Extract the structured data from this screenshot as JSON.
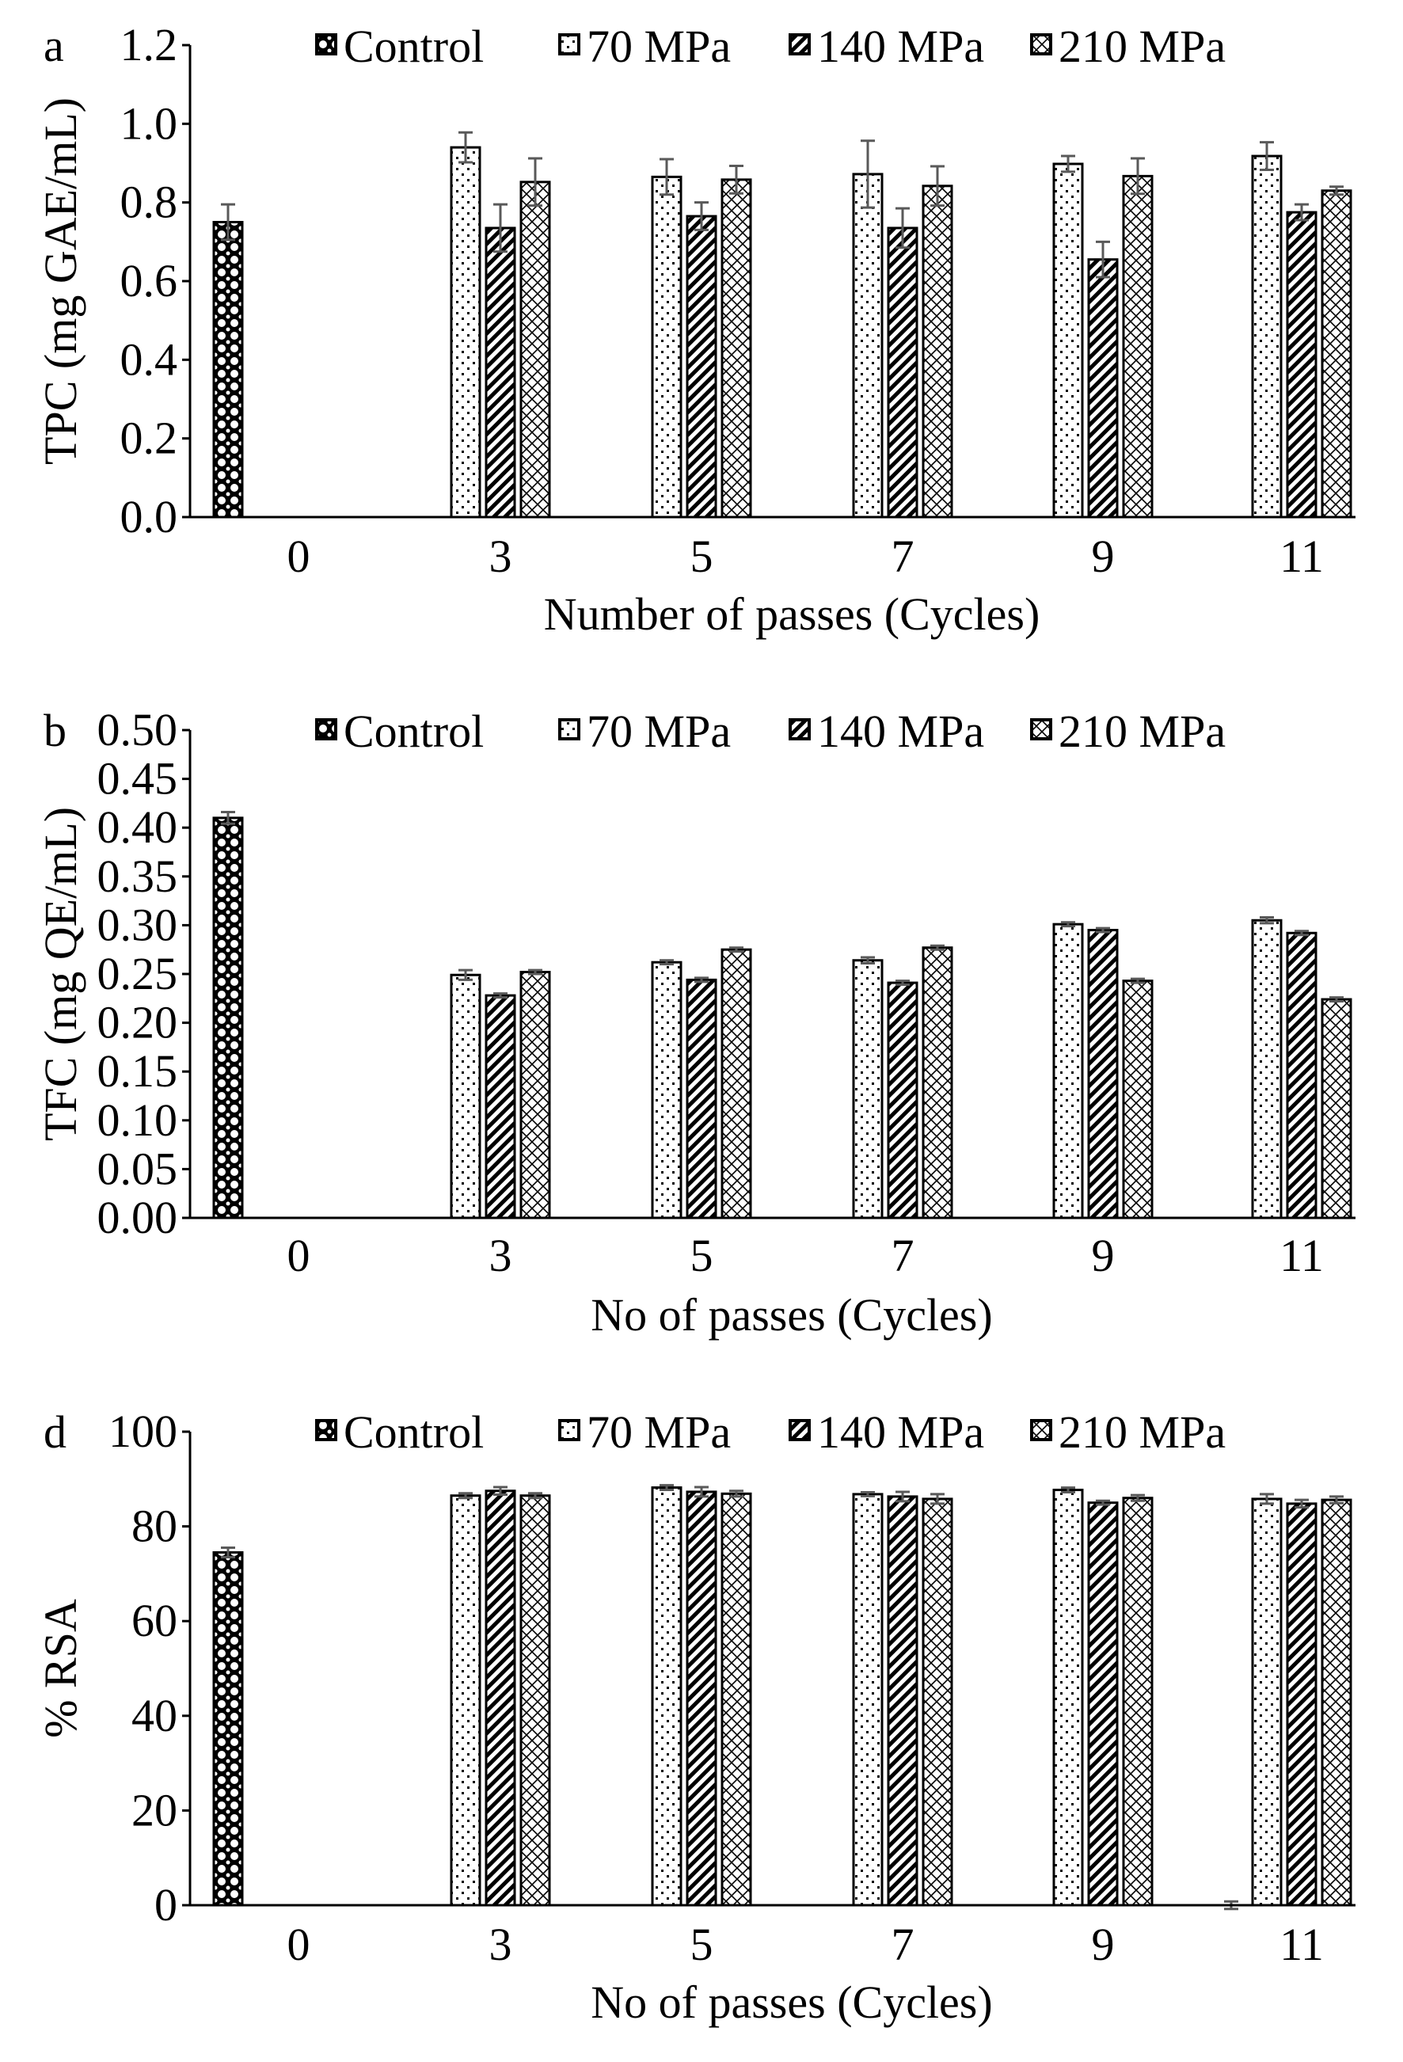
{
  "colors": {
    "axis": "#000000",
    "error_bar": "#595959",
    "bar_outline": "#000000"
  },
  "chart_data": [
    {
      "panel_letter": "a",
      "type": "bar",
      "categories": [
        "0",
        "3",
        "5",
        "7",
        "9",
        "11"
      ],
      "xlabel": "Number of passes (Cycles)",
      "ylabel": "TPC (mg GAE/mL)",
      "ylim": [
        0,
        1.2
      ],
      "yticks": [
        "0.0",
        "0.2",
        "0.4",
        "0.6",
        "0.8",
        "1.0",
        "1.2"
      ],
      "grid": false,
      "legend": "top",
      "series": [
        {
          "name": "Control",
          "pattern": "checker",
          "values": [
            0.75,
            null,
            null,
            null,
            null,
            null
          ],
          "errors": [
            0.045,
            null,
            null,
            null,
            null,
            null
          ]
        },
        {
          "name": "70 MPa",
          "pattern": "dots",
          "values": [
            null,
            0.94,
            0.865,
            0.872,
            0.898,
            0.918
          ],
          "errors": [
            null,
            0.038,
            0.045,
            0.085,
            0.02,
            0.035
          ]
        },
        {
          "name": "140 MPa",
          "pattern": "stripes",
          "values": [
            null,
            0.735,
            0.765,
            0.735,
            0.655,
            0.775
          ],
          "errors": [
            null,
            0.06,
            0.035,
            0.05,
            0.045,
            0.02
          ]
        },
        {
          "name": "210 MPa",
          "pattern": "crosshatch",
          "values": [
            null,
            0.852,
            0.858,
            0.842,
            0.867,
            0.83
          ],
          "errors": [
            null,
            0.06,
            0.035,
            0.05,
            0.045,
            0.01
          ]
        }
      ]
    },
    {
      "panel_letter": "b",
      "type": "bar",
      "categories": [
        "0",
        "3",
        "5",
        "7",
        "9",
        "11"
      ],
      "xlabel": "No of passes (Cycles)",
      "ylabel": "TFC (mg QE/mL)",
      "ylim": [
        0,
        0.5
      ],
      "yticks": [
        "0.00",
        "0.05",
        "0.10",
        "0.15",
        "0.20",
        "0.25",
        "0.30",
        "0.35",
        "0.40",
        "0.45",
        "0.50"
      ],
      "grid": false,
      "legend": "top",
      "series": [
        {
          "name": "Control",
          "pattern": "checker",
          "values": [
            0.41,
            null,
            null,
            null,
            null,
            null
          ],
          "errors": [
            0.006,
            null,
            null,
            null,
            null,
            null
          ]
        },
        {
          "name": "70 MPa",
          "pattern": "dots",
          "values": [
            null,
            0.249,
            0.262,
            0.264,
            0.301,
            0.305
          ],
          "errors": [
            null,
            0.005,
            0.002,
            0.003,
            0.002,
            0.003
          ]
        },
        {
          "name": "140 MPa",
          "pattern": "stripes",
          "values": [
            null,
            0.228,
            0.244,
            0.241,
            0.295,
            0.292
          ],
          "errors": [
            null,
            0.002,
            0.002,
            0.002,
            0.002,
            0.002
          ]
        },
        {
          "name": "210 MPa",
          "pattern": "crosshatch",
          "values": [
            null,
            0.252,
            0.275,
            0.277,
            0.243,
            0.224
          ],
          "errors": [
            null,
            0.002,
            0.002,
            0.002,
            0.002,
            0.002
          ]
        }
      ]
    },
    {
      "panel_letter": "d",
      "type": "bar",
      "categories": [
        "0",
        "3",
        "5",
        "7",
        "9",
        "11"
      ],
      "xlabel": "No of passes (Cycles)",
      "ylabel": "% RSA",
      "ylim": [
        0,
        100
      ],
      "yticks": [
        "0",
        "20",
        "40",
        "60",
        "80",
        "100"
      ],
      "grid": false,
      "legend": "top",
      "series": [
        {
          "name": "Control",
          "pattern": "checker",
          "values": [
            74.5,
            null,
            null,
            null,
            null,
            0
          ],
          "errors": [
            1.0,
            null,
            null,
            null,
            null,
            0.8
          ]
        },
        {
          "name": "70 MPa",
          "pattern": "dots",
          "values": [
            null,
            86.5,
            88.2,
            86.8,
            87.7,
            85.8
          ],
          "errors": [
            null,
            0.5,
            0.5,
            0.4,
            0.5,
            1.0
          ]
        },
        {
          "name": "140 MPa",
          "pattern": "stripes",
          "values": [
            null,
            87.5,
            87.3,
            86.3,
            85.0,
            84.8
          ],
          "errors": [
            null,
            0.8,
            1.0,
            1.0,
            0.4,
            0.8
          ]
        },
        {
          "name": "210 MPa",
          "pattern": "crosshatch",
          "values": [
            null,
            86.5,
            86.9,
            85.8,
            86.0,
            85.6
          ],
          "errors": [
            null,
            0.5,
            0.6,
            1.0,
            0.6,
            0.7
          ]
        }
      ]
    }
  ]
}
